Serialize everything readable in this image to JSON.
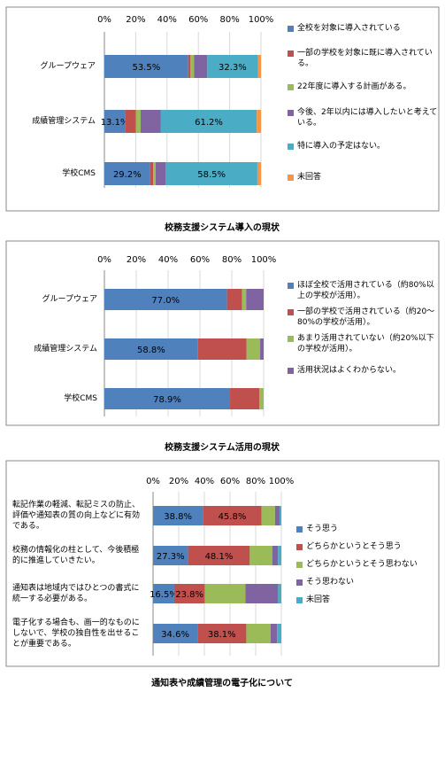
{
  "chart_data": [
    {
      "type": "bar",
      "orientation": "horizontal",
      "stacked": true,
      "title": "校務支援システム導入の現状",
      "categories": [
        "グループウェア",
        "成績管理システム",
        "学校CMS"
      ],
      "xlim": [
        0,
        100
      ],
      "xticks": [
        {
          "value": 0,
          "label": "0%"
        },
        {
          "value": 20,
          "label": "20%"
        },
        {
          "value": 40,
          "label": "40%"
        },
        {
          "value": 60,
          "label": "60%"
        },
        {
          "value": 80,
          "label": "80%"
        },
        {
          "value": 100,
          "label": "100%"
        }
      ],
      "grid": true,
      "legend": "right",
      "series": [
        {
          "name": "全校を対象に導入されている",
          "color": "#4f81bd",
          "values": [
            53.5,
            13.1,
            29.2
          ],
          "value_labels": [
            "53.5%",
            "13.1%",
            "29.2%"
          ]
        },
        {
          "name": "一部の学校を対象に既に導入されている。",
          "color": "#c0504d",
          "values": [
            1.5,
            7,
            2
          ]
        },
        {
          "name": "22年度に導入する計画がある。",
          "color": "#9bbb59",
          "values": [
            2.2,
            3,
            1.5
          ]
        },
        {
          "name": "今後、2年以内には導入したいと考えている。",
          "color": "#8064a2",
          "values": [
            8.5,
            13,
            6.5
          ]
        },
        {
          "name": "特に導入の予定はない。",
          "color": "#4bacc6",
          "values": [
            32.3,
            61.2,
            58.5
          ],
          "value_labels": [
            "32.3%",
            "61.2%",
            "58.5%"
          ]
        },
        {
          "name": "未回答",
          "color": "#f79646",
          "values": [
            2.0,
            2.7,
            2.3
          ]
        }
      ]
    },
    {
      "type": "bar",
      "orientation": "horizontal",
      "stacked": true,
      "title": "校務支援システム活用の現状",
      "categories": [
        "グループウェア",
        "成績管理システム",
        "学校CMS"
      ],
      "xlim": [
        0,
        100
      ],
      "xticks": [
        {
          "value": 0,
          "label": "0%"
        },
        {
          "value": 20,
          "label": "20%"
        },
        {
          "value": 40,
          "label": "40%"
        },
        {
          "value": 60,
          "label": "60%"
        },
        {
          "value": 80,
          "label": "80%"
        },
        {
          "value": 100,
          "label": "100%"
        }
      ],
      "grid": true,
      "legend": "right",
      "series": [
        {
          "name": "ほぼ全校で活用されている（約80%以上の学校が活用）。",
          "color": "#4f81bd",
          "values": [
            77.0,
            58.8,
            78.9
          ],
          "value_labels": [
            "77.0%",
            "58.8%",
            "78.9%"
          ]
        },
        {
          "name": "一部の学校で活用されている（約20～80%の学校が活用）。",
          "color": "#c0504d",
          "values": [
            9.5,
            30.5,
            18.5
          ]
        },
        {
          "name": "あまり活用されていない（約20%以下の学校が活用）。",
          "color": "#9bbb59",
          "values": [
            2.5,
            8.5,
            2.6
          ]
        },
        {
          "name": "活用状況はよくわからない。",
          "color": "#8064a2",
          "values": [
            11,
            2.2,
            0
          ]
        }
      ]
    },
    {
      "type": "bar",
      "orientation": "horizontal",
      "stacked": true,
      "title": "通知表や成績管理の電子化について",
      "categories": [
        "転記作業の軽減、転記ミスの防止、評価や通知表の質の向上などに有効である。",
        "校務の情報化の柱として、今後積極的に推進していきたい。",
        "通知表は地域内ではひとつの書式に統一する必要がある。",
        "電子化する場合も、画一的なものにしないで、学校の独自性を出せることが重要である。"
      ],
      "xlim": [
        0,
        100
      ],
      "xticks": [
        {
          "value": 0,
          "label": "0%"
        },
        {
          "value": 20,
          "label": "20%"
        },
        {
          "value": 40,
          "label": "40%"
        },
        {
          "value": 60,
          "label": "60%"
        },
        {
          "value": 80,
          "label": "80%"
        },
        {
          "value": 100,
          "label": "100%"
        }
      ],
      "grid": true,
      "legend": "right",
      "series": [
        {
          "name": "そう思う",
          "color": "#4f81bd",
          "values": [
            38.8,
            27.3,
            16.5,
            34.6
          ],
          "value_labels": [
            "38.8%",
            "27.3%",
            "16.5%",
            "34.6%"
          ]
        },
        {
          "name": "どちらかというとそう思う",
          "color": "#c0504d",
          "values": [
            45.8,
            48.1,
            23.8,
            38.1
          ],
          "value_labels": [
            "45.8%",
            "48.1%",
            "23.8%",
            "38.1%"
          ]
        },
        {
          "name": "どちらかというとそう思わない",
          "color": "#9bbb59",
          "values": [
            10.5,
            17.5,
            31.7,
            19
          ]
        },
        {
          "name": "そう思わない",
          "color": "#8064a2",
          "values": [
            3.5,
            4.5,
            25.5,
            5
          ]
        },
        {
          "name": "未回答",
          "color": "#4bacc6",
          "values": [
            1.4,
            2.6,
            2.5,
            3.3
          ]
        }
      ]
    }
  ]
}
